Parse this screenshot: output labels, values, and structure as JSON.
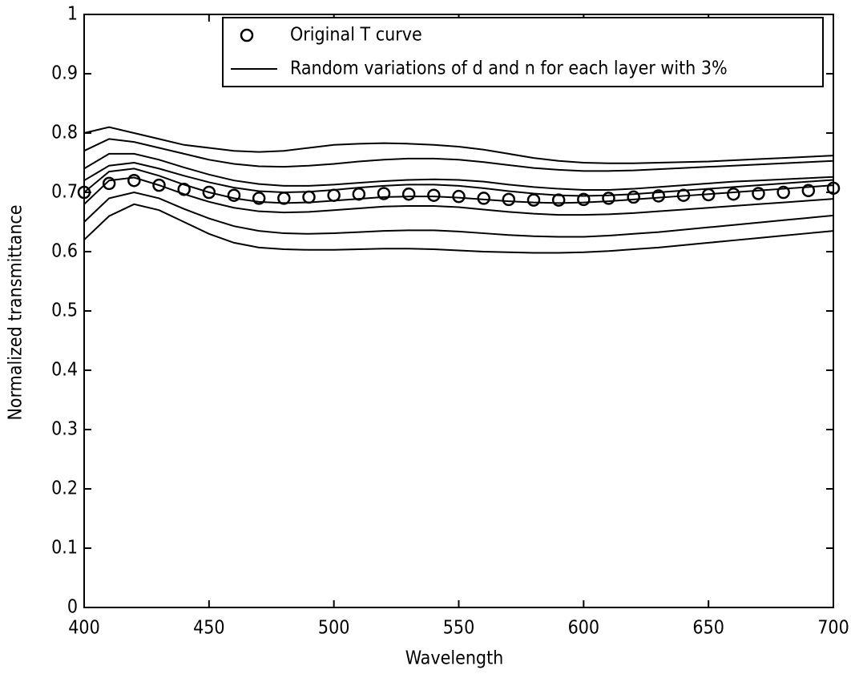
{
  "chart_data": {
    "type": "line",
    "xlabel": "Wavelength",
    "ylabel": "Normalized transmittance",
    "x": [
      400,
      410,
      420,
      430,
      440,
      450,
      460,
      470,
      480,
      490,
      500,
      510,
      520,
      530,
      540,
      550,
      560,
      570,
      580,
      590,
      600,
      610,
      620,
      630,
      640,
      650,
      660,
      670,
      680,
      690,
      700
    ],
    "xlim": [
      400,
      700
    ],
    "xticks": [
      400,
      450,
      500,
      550,
      600,
      650,
      700
    ],
    "ylim": [
      0,
      1
    ],
    "yticks": [
      0,
      0.1,
      0.2,
      0.3,
      0.4,
      0.5,
      0.6,
      0.7,
      0.8,
      0.9,
      1
    ],
    "legend": "top-right",
    "series": [
      {
        "name": "Original T curve",
        "color": "#000000",
        "style": "markers",
        "values": [
          0.7,
          0.715,
          0.72,
          0.712,
          0.705,
          0.7,
          0.695,
          0.69,
          0.69,
          0.692,
          0.695,
          0.697,
          0.698,
          0.697,
          0.695,
          0.693,
          0.69,
          0.688,
          0.687,
          0.687,
          0.688,
          0.69,
          0.692,
          0.694,
          0.695,
          0.696,
          0.697,
          0.698,
          0.7,
          0.703,
          0.707
        ]
      },
      {
        "name": "Random variations of d and n for each layer with 3%",
        "color": "#000000",
        "style": "line",
        "values": [
          0.8,
          0.81,
          0.8,
          0.79,
          0.78,
          0.775,
          0.77,
          0.768,
          0.77,
          0.775,
          0.78,
          0.782,
          0.783,
          0.782,
          0.78,
          0.777,
          0.772,
          0.765,
          0.758,
          0.753,
          0.75,
          0.749,
          0.749,
          0.75,
          0.751,
          0.752,
          0.754,
          0.756,
          0.758,
          0.76,
          0.762
        ]
      },
      {
        "color": "#000000",
        "style": "line",
        "values": [
          0.62,
          0.66,
          0.68,
          0.67,
          0.65,
          0.63,
          0.615,
          0.607,
          0.604,
          0.603,
          0.603,
          0.604,
          0.605,
          0.605,
          0.604,
          0.602,
          0.6,
          0.599,
          0.598,
          0.598,
          0.599,
          0.601,
          0.604,
          0.607,
          0.611,
          0.615,
          0.619,
          0.623,
          0.627,
          0.631,
          0.635
        ]
      },
      {
        "color": "#000000",
        "style": "line",
        "values": [
          0.77,
          0.79,
          0.785,
          0.775,
          0.765,
          0.755,
          0.748,
          0.744,
          0.743,
          0.745,
          0.748,
          0.752,
          0.755,
          0.757,
          0.757,
          0.755,
          0.751,
          0.746,
          0.741,
          0.738,
          0.736,
          0.736,
          0.737,
          0.739,
          0.741,
          0.743,
          0.745,
          0.747,
          0.749,
          0.751,
          0.753
        ]
      },
      {
        "color": "#000000",
        "style": "line",
        "values": [
          0.74,
          0.765,
          0.765,
          0.755,
          0.742,
          0.73,
          0.72,
          0.714,
          0.711,
          0.711,
          0.713,
          0.716,
          0.719,
          0.721,
          0.722,
          0.721,
          0.718,
          0.713,
          0.709,
          0.706,
          0.704,
          0.704,
          0.706,
          0.709,
          0.712,
          0.715,
          0.718,
          0.72,
          0.722,
          0.724,
          0.726
        ]
      },
      {
        "color": "#000000",
        "style": "line",
        "values": [
          0.68,
          0.72,
          0.725,
          0.712,
          0.697,
          0.684,
          0.674,
          0.668,
          0.666,
          0.667,
          0.67,
          0.673,
          0.676,
          0.677,
          0.677,
          0.675,
          0.671,
          0.667,
          0.664,
          0.662,
          0.662,
          0.663,
          0.665,
          0.668,
          0.671,
          0.674,
          0.677,
          0.68,
          0.683,
          0.686,
          0.689
        ]
      },
      {
        "color": "#000000",
        "style": "line",
        "values": [
          0.65,
          0.69,
          0.7,
          0.69,
          0.672,
          0.656,
          0.643,
          0.635,
          0.631,
          0.63,
          0.631,
          0.633,
          0.635,
          0.636,
          0.636,
          0.634,
          0.631,
          0.628,
          0.626,
          0.625,
          0.625,
          0.627,
          0.63,
          0.633,
          0.637,
          0.641,
          0.645,
          0.649,
          0.653,
          0.657,
          0.661
        ]
      },
      {
        "color": "#000000",
        "style": "line",
        "values": [
          0.72,
          0.745,
          0.75,
          0.74,
          0.728,
          0.717,
          0.708,
          0.702,
          0.7,
          0.701,
          0.704,
          0.708,
          0.711,
          0.713,
          0.713,
          0.711,
          0.707,
          0.702,
          0.698,
          0.695,
          0.694,
          0.695,
          0.697,
          0.7,
          0.703,
          0.706,
          0.709,
          0.712,
          0.715,
          0.718,
          0.721
        ]
      },
      {
        "color": "#000000",
        "style": "line",
        "values": [
          0.7,
          0.735,
          0.74,
          0.728,
          0.713,
          0.7,
          0.69,
          0.684,
          0.682,
          0.683,
          0.686,
          0.689,
          0.692,
          0.693,
          0.693,
          0.691,
          0.688,
          0.685,
          0.683,
          0.682,
          0.683,
          0.685,
          0.688,
          0.691,
          0.694,
          0.697,
          0.7,
          0.703,
          0.706,
          0.709,
          0.712
        ]
      }
    ]
  }
}
